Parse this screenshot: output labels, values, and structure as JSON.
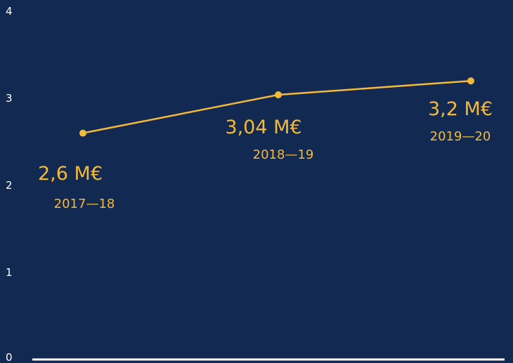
{
  "chart_data": {
    "type": "line",
    "categories": [
      "2017—18",
      "2018—19",
      "2019—20"
    ],
    "values": [
      2.6,
      3.04,
      3.2
    ],
    "data_labels": [
      "2,6 M€",
      "3,04 M€",
      "3,2 M€"
    ],
    "yticks": [
      "0",
      "1",
      "2",
      "3",
      "4"
    ],
    "ylim": [
      0,
      4
    ],
    "grid": false,
    "title": "",
    "xlabel": "",
    "ylabel": ""
  },
  "colors": {
    "background": "#122a52",
    "series": "#f5b93a",
    "axis": "#ffffff"
  }
}
